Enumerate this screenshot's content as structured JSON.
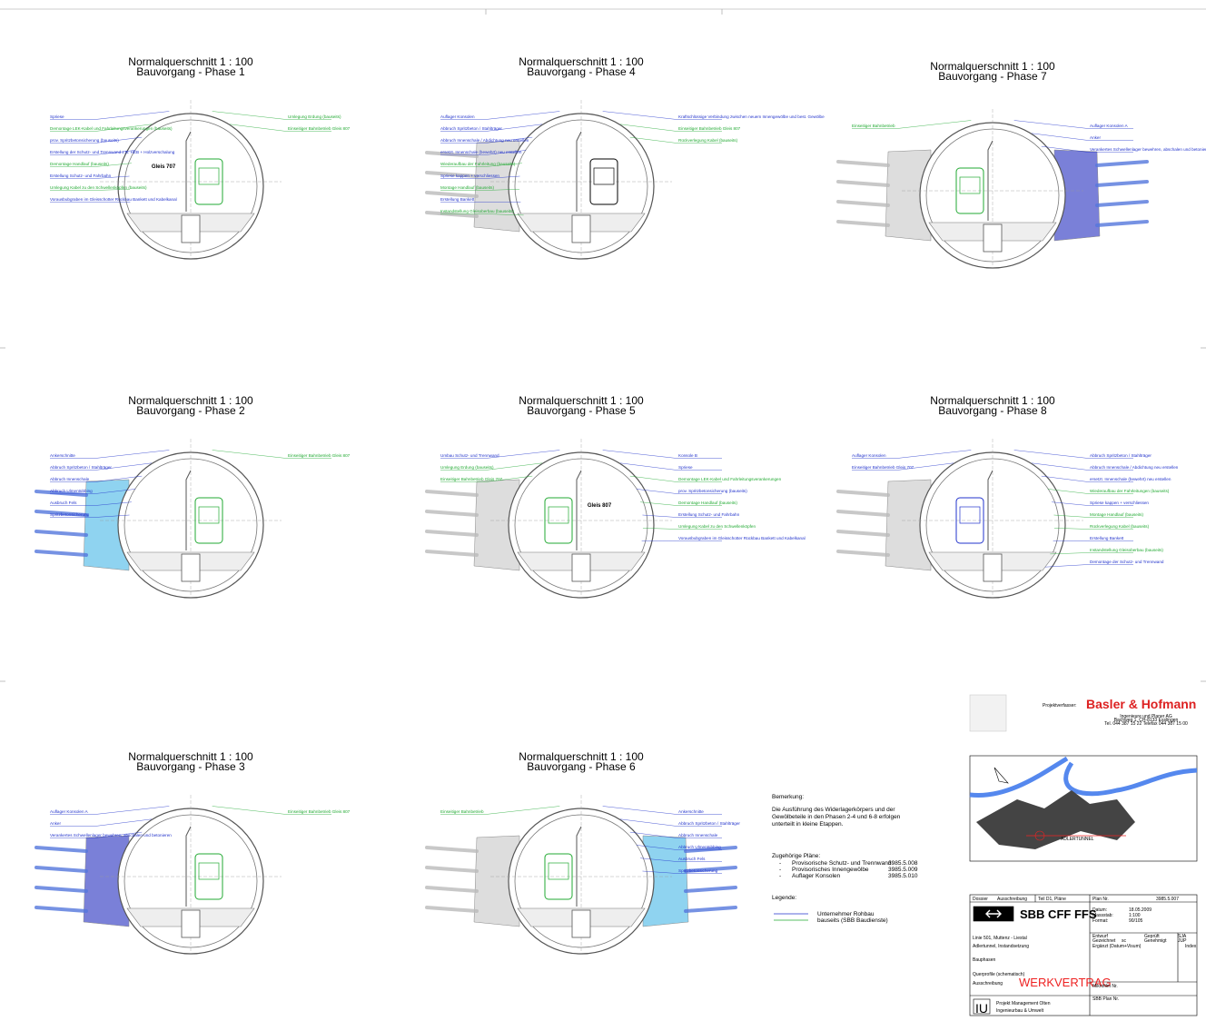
{
  "panels": [
    {
      "title": "Normalquerschnitt  1 : 100",
      "subtitle": "Bauvorgang - Phase 1",
      "track": "Gleis 707",
      "annotations": [
        {
          "side": "left",
          "color": "#2233cc",
          "text": "Spriese"
        },
        {
          "side": "left",
          "color": "#22aa33",
          "text": "Demontage LEK-Kabel und Fahrleitungsverankerungen (bauseits)"
        },
        {
          "side": "left",
          "color": "#2233cc",
          "text": "prov. Spritzbetonsicherung (bauseits)"
        },
        {
          "side": "left",
          "color": "#2233cc",
          "text": "Erstellung der Schutz- und Trennwand z.B. HEB + Holzverschalung"
        },
        {
          "side": "left",
          "color": "#22aa33",
          "text": "Demontage Handlauf (bauseits)"
        },
        {
          "side": "left",
          "color": "#2233cc",
          "text": "Erstellung Schutz- und Fahrbahn"
        },
        {
          "side": "left",
          "color": "#22aa33",
          "text": "Umlegung Kabel zu den Schwellenköpfen (bauseits)"
        },
        {
          "side": "left",
          "color": "#2233cc",
          "text": "Vorausbubgraben im Gleisschotter Rückbau Bankett und Kabelkanal"
        },
        {
          "side": "right",
          "color": "#22aa33",
          "text": "Umlegung Erdung (bauseits)"
        },
        {
          "side": "right",
          "color": "#22aa33",
          "text": "Einseitiger Bahnbetrieb Gleis 807"
        }
      ]
    },
    {
      "title": "Normalquerschnitt  1 : 100",
      "subtitle": "Bauvorgang - Phase 2",
      "track": "",
      "annotations": [
        {
          "side": "left",
          "color": "#2233cc",
          "text": "Ankerschnitte"
        },
        {
          "side": "left",
          "color": "#2233cc",
          "text": "Abbruch Spritzbeton / Stahlträger"
        },
        {
          "side": "left",
          "color": "#2233cc",
          "text": "Abbruch Innenschale"
        },
        {
          "side": "left",
          "color": "#2233cc",
          "text": "Abbruch Ulmentübbing"
        },
        {
          "side": "left",
          "color": "#2233cc",
          "text": "Ausbruch Fels"
        },
        {
          "side": "left",
          "color": "#2233cc",
          "text": "Spritzbetonsicherung"
        },
        {
          "side": "right",
          "color": "#22aa33",
          "text": "Einseitiger Bahnbetrieb Gleis 807"
        }
      ]
    },
    {
      "title": "Normalquerschnitt  1 : 100",
      "subtitle": "Bauvorgang - Phase 3",
      "track": "",
      "annotations": [
        {
          "side": "left",
          "color": "#2233cc",
          "text": "Auflager Konsolen A"
        },
        {
          "side": "left",
          "color": "#2233cc",
          "text": "Anker"
        },
        {
          "side": "left",
          "color": "#2233cc",
          "text": "Verankertes Schwellenlager bewehren, abschalen und betonieren"
        },
        {
          "side": "right",
          "color": "#22aa33",
          "text": "Einseitiger Bahnbetrieb Gleis 807"
        }
      ]
    },
    {
      "title": "Normalquerschnitt  1 : 100",
      "subtitle": "Bauvorgang - Phase 4",
      "track": "",
      "annotations": [
        {
          "side": "left",
          "color": "#2233cc",
          "text": "Auflager Konsolen"
        },
        {
          "side": "left",
          "color": "#2233cc",
          "text": "Abbruch Spritzbeton / Stahlträger"
        },
        {
          "side": "left",
          "color": "#2233cc",
          "text": "Abbruch Innenschale / Abdichtung neu erstellen"
        },
        {
          "side": "left",
          "color": "#2233cc",
          "text": "ersetzt. Innenschale (bewehrt) neu erstellen"
        },
        {
          "side": "left",
          "color": "#22aa33",
          "text": "Wiederaufbau der Fahrleitung (bauseits)"
        },
        {
          "side": "left",
          "color": "#2233cc",
          "text": "Spriese kappen + verschliessen"
        },
        {
          "side": "left",
          "color": "#22aa33",
          "text": "Montage Handlauf (bauseits)"
        },
        {
          "side": "left",
          "color": "#2233cc",
          "text": "Erstellung Bankett"
        },
        {
          "side": "left",
          "color": "#22aa33",
          "text": "Instandstellung Gleisoberbau (bauseits)"
        },
        {
          "side": "right",
          "color": "#2233cc",
          "text": "Kraftschlüssige Verbindung zwischen neuem Innengewölbe und best. Gewölbe"
        },
        {
          "side": "right",
          "color": "#22aa33",
          "text": "Einseitiger Bahnbetrieb Gleis 807"
        },
        {
          "side": "right",
          "color": "#22aa33",
          "text": "Rückverlegung Kabel (bauseits)"
        }
      ]
    },
    {
      "title": "Normalquerschnitt  1 : 100",
      "subtitle": "Bauvorgang - Phase 5",
      "track": "Gleis 807",
      "annotations": [
        {
          "side": "left",
          "color": "#2233cc",
          "text": "Umbau Schutz- und Trennwand"
        },
        {
          "side": "left",
          "color": "#22aa33",
          "text": "Umlegung Erdung (bauseits)"
        },
        {
          "side": "left",
          "color": "#22aa33",
          "text": "Einseitiger Bahnbetrieb Gleis 707"
        },
        {
          "side": "right",
          "color": "#2233cc",
          "text": "Konsole B"
        },
        {
          "side": "right",
          "color": "#2233cc",
          "text": "Spriese"
        },
        {
          "side": "right",
          "color": "#22aa33",
          "text": "Demontage LEK-Kabel und Fahrleitungsverankerungen"
        },
        {
          "side": "right",
          "color": "#2233cc",
          "text": "prov. Spritzbetonsicherung (bauseits)"
        },
        {
          "side": "right",
          "color": "#22aa33",
          "text": "Demontage Handlauf (bauseits)"
        },
        {
          "side": "right",
          "color": "#2233cc",
          "text": "Erstellung Schutz- und Fahrbahn"
        },
        {
          "side": "right",
          "color": "#22aa33",
          "text": "Umlegung Kabel zu den Schwellenköpfen"
        },
        {
          "side": "right",
          "color": "#2233cc",
          "text": "Vorausbubgraben im Gleisschotter Rückbau Bankett und Kabelkanal"
        }
      ]
    },
    {
      "title": "Normalquerschnitt  1 : 100",
      "subtitle": "Bauvorgang - Phase 6",
      "track": "",
      "annotations": [
        {
          "side": "left",
          "color": "#22aa33",
          "text": "Einseitiger Bahnbetrieb"
        },
        {
          "side": "right",
          "color": "#2233cc",
          "text": "Ankerschnitte"
        },
        {
          "side": "right",
          "color": "#2233cc",
          "text": "Abbruch Spritzbeton / Stahlträger"
        },
        {
          "side": "right",
          "color": "#2233cc",
          "text": "Abbruch Innenschale"
        },
        {
          "side": "right",
          "color": "#2233cc",
          "text": "Abbruch Ulmentübbing"
        },
        {
          "side": "right",
          "color": "#2233cc",
          "text": "Ausbruch Fels"
        },
        {
          "side": "right",
          "color": "#2233cc",
          "text": "Spritzbetonsicherung"
        }
      ]
    },
    {
      "title": "Normalquerschnitt  1 : 100",
      "subtitle": "Bauvorgang - Phase 7",
      "track": "",
      "annotations": [
        {
          "side": "left",
          "color": "#22aa33",
          "text": "Einseitiger Bahnbetrieb"
        },
        {
          "side": "right",
          "color": "#2233cc",
          "text": "Auflager Konsolen A"
        },
        {
          "side": "right",
          "color": "#2233cc",
          "text": "Anker"
        },
        {
          "side": "right",
          "color": "#2233cc",
          "text": "Verankertes Schwellenlager bewehren, abschalen und betonieren"
        }
      ]
    },
    {
      "title": "Normalquerschnitt  1 : 100",
      "subtitle": "Bauvorgang - Phase 8",
      "track": "",
      "annotations": [
        {
          "side": "left",
          "color": "#2233cc",
          "text": "Auflager Konsolen"
        },
        {
          "side": "left",
          "color": "#2233cc",
          "text": "Einseitiger Bahnbetrieb Gleis 707"
        },
        {
          "side": "right",
          "color": "#2233cc",
          "text": "Abbruch Spritzbeton / Stahlträger"
        },
        {
          "side": "right",
          "color": "#2233cc",
          "text": "Abbruch Innenschale / Abdichtung neu erstellen"
        },
        {
          "side": "right",
          "color": "#2233cc",
          "text": "ersetzt. Innenschale (bewehrt) neu erstellen"
        },
        {
          "side": "right",
          "color": "#22aa33",
          "text": "Wiederaufbau der Fahrleitungen (bauseits)"
        },
        {
          "side": "right",
          "color": "#2233cc",
          "text": "Spriese kappen + verschliessen"
        },
        {
          "side": "right",
          "color": "#22aa33",
          "text": "Montage Handlauf (bauseits)"
        },
        {
          "side": "right",
          "color": "#22aa33",
          "text": "Rückverlegung Kabel (bauseits)"
        },
        {
          "side": "right",
          "color": "#2233cc",
          "text": "Erstellung Bankett"
        },
        {
          "side": "right",
          "color": "#22aa33",
          "text": "Instandstellung Gleisoberbau (bauseits)"
        },
        {
          "side": "right",
          "color": "#2233cc",
          "text": "Demontage der Schutz- und Trennwand"
        }
      ]
    }
  ],
  "notes": {
    "heading": "Bemerkung:",
    "lines": [
      "Die Ausführung des Widerlagerkörpers und der",
      "Gewölbeteile in den Phasen 2-4 und 6-8 erfolgen",
      "unterteilt in kleine Etappen."
    ]
  },
  "plans": {
    "heading": "Zugehörige Pläne:",
    "items": [
      {
        "name": "Provisorische Schutz- und Trennwand",
        "number": "3985.5.008"
      },
      {
        "name": "Provisorisches Innengewölbe",
        "number": "3985.5.009"
      },
      {
        "name": "Auflager Konsolen",
        "number": "3985.5.010"
      }
    ]
  },
  "legend": {
    "heading": "Legende:",
    "items": [
      {
        "label": "Unternehmer Rohbau",
        "color": "#2233cc"
      },
      {
        "label": "bauseits (SBB Baudienste)",
        "color": "#22aa33"
      }
    ]
  },
  "titleblock": {
    "author_label": "Projektverfasser:",
    "company": "Basler & Hofmann",
    "company_lines": [
      "Ingenieure und Planer AG",
      "Bachweg 1, CH-8133 Esslingen",
      "Tel. 044 387 15 22   Telefax 044 387 15 00"
    ],
    "map_label": "ADLERTUNNEL",
    "dossier_label": "Dossier",
    "dossier": "Ausschreibung",
    "part": "Teil D1, Pläne",
    "plan_label": "Plan Nr.",
    "plan": "3985.5.007",
    "client": "SBB CFF FFS",
    "date_label": "Datum:",
    "date": "18.05.2009",
    "scale_label": "Massstab:",
    "scale": "1:100",
    "format_label": "Format:",
    "format": "90/105",
    "draft": "Entwurf",
    "checked": "Geprüft",
    "checked_by": "SJA",
    "drawn": "Gezeichnet",
    "drawn_by": "sc",
    "approved": "Genehmigt",
    "approved_by": "JUP",
    "amended": "Ergänzt (Datum+Visum)",
    "index": "Index",
    "line": "Linie 501, Muttenz - Liestal",
    "project": "Adlertunnel, Instandsetzung",
    "subject": "Bauphasen",
    "detail": "Querprofile (schematisch)",
    "stage_label": "Ausschreibung",
    "stage": "WERKVERTRAG",
    "microfilm": "Mikrofilm Nr.",
    "sbb_plan": "SBB Plan Nr.",
    "unit_code": "IU",
    "unit_line1": "Projekt Management Olten",
    "unit_line2": "Ingenieurbau & Umwelt"
  }
}
